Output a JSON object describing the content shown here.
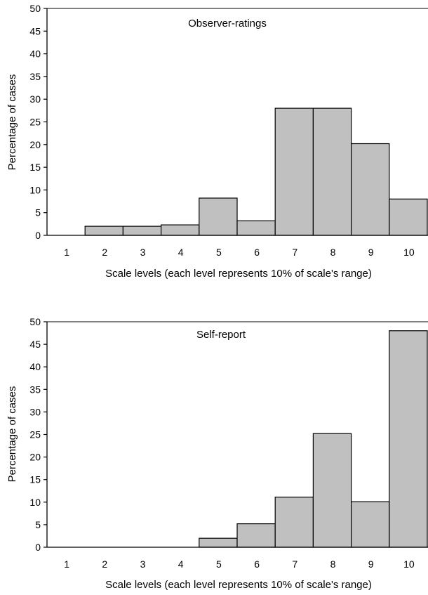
{
  "chart_data": [
    {
      "type": "bar",
      "title": "Observer-ratings",
      "xlabel": "Scale levels (each level represents 10% of scale's range)",
      "ylabel": "Percentage of cases",
      "categories": [
        "1",
        "2",
        "3",
        "4",
        "5",
        "6",
        "7",
        "8",
        "9",
        "10"
      ],
      "values": [
        0,
        2,
        2,
        2.3,
        8.2,
        3.2,
        28,
        28,
        20.2,
        8
      ],
      "ylim": [
        0,
        50
      ],
      "yticks": [
        "0",
        "5",
        "10",
        "15",
        "20",
        "25",
        "30",
        "35",
        "40",
        "45",
        "50"
      ],
      "grid": false,
      "legend": "none",
      "bar_color": "#c0c0c0"
    },
    {
      "type": "bar",
      "title": "Self-report",
      "xlabel": "Scale levels (each level represents 10% of scale's range)",
      "ylabel": "Percentage of cases",
      "categories": [
        "1",
        "2",
        "3",
        "4",
        "5",
        "6",
        "7",
        "8",
        "9",
        "10"
      ],
      "values": [
        0,
        0,
        0,
        0,
        2,
        5.2,
        11.1,
        25.2,
        10.1,
        48
      ],
      "ylim": [
        0,
        50
      ],
      "yticks": [
        "0",
        "5",
        "10",
        "15",
        "20",
        "25",
        "30",
        "35",
        "40",
        "45",
        "50"
      ],
      "grid": false,
      "legend": "none",
      "bar_color": "#c0c0c0"
    }
  ]
}
